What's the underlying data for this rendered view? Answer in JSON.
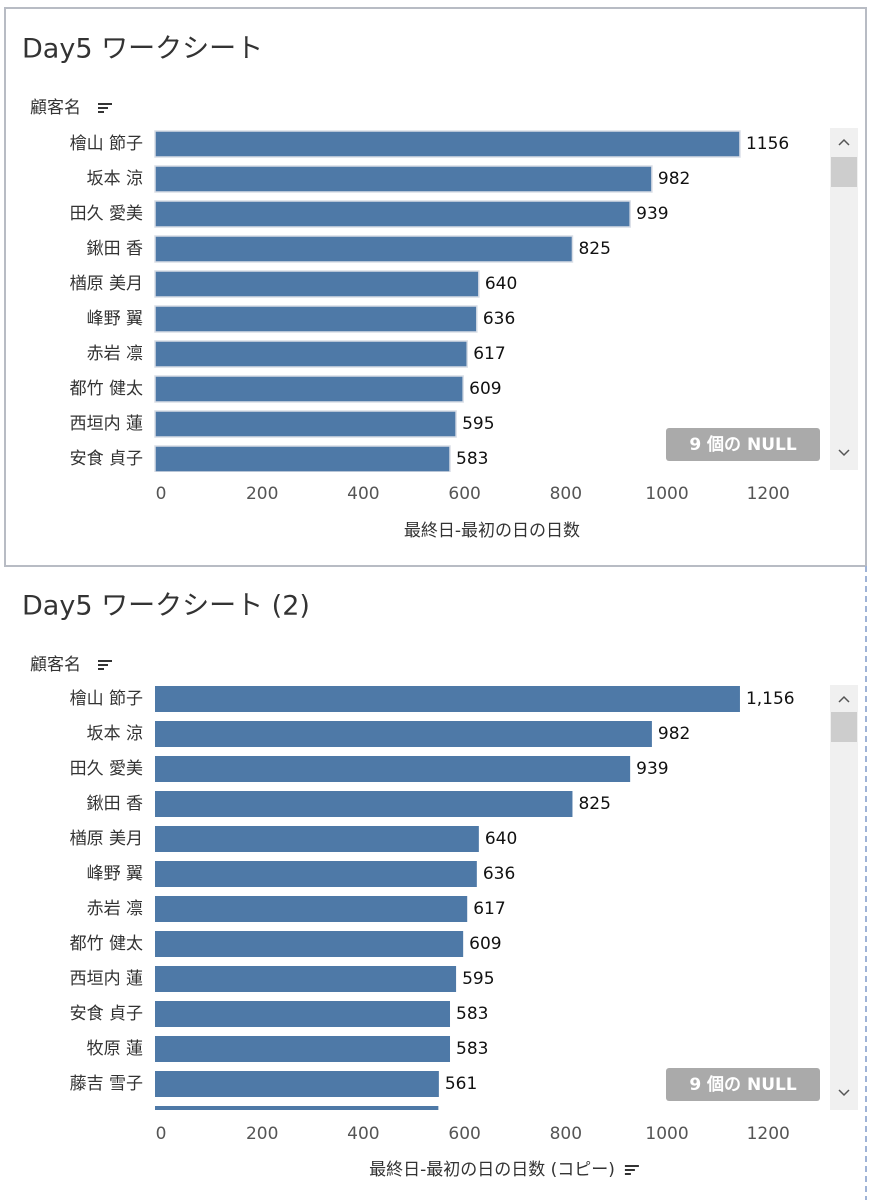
{
  "chart_data": [
    {
      "type": "bar",
      "orientation": "horizontal",
      "title": "Day5 ワークシート",
      "row_header": "顧客名",
      "categories": [
        "檜山 節子",
        "坂本 涼",
        "田久 愛美",
        "鍬田 香",
        "楢原 美月",
        "峰野 翼",
        "赤岩 凛",
        "都竹 健太",
        "西垣内 蓮",
        "安食 貞子"
      ],
      "values": [
        1156,
        982,
        939,
        825,
        640,
        636,
        617,
        609,
        595,
        583
      ],
      "color": "#4e79a7",
      "xlim": [
        0,
        1330
      ],
      "xticks": [
        0,
        200,
        400,
        600,
        800,
        1000,
        1200
      ],
      "xlabel": "最終日-最初の日の日数",
      "null_indicator": "9 個の NULL"
    },
    {
      "type": "bar",
      "orientation": "horizontal",
      "title": "Day5 ワークシート (2)",
      "row_header": "顧客名",
      "categories": [
        "檜山 節子",
        "坂本 涼",
        "田久 愛美",
        "鍬田 香",
        "楢原 美月",
        "峰野 翼",
        "赤岩 凛",
        "都竹 健太",
        "西垣内 蓮",
        "安食 貞子",
        "牧原 蓮",
        "藤吉 雪子",
        null
      ],
      "values": [
        1156,
        982,
        939,
        825,
        640,
        636,
        617,
        609,
        595,
        583,
        583,
        561,
        560
      ],
      "value_labels": [
        "1,156",
        "982",
        "939",
        "825",
        "640",
        "636",
        "617",
        "609",
        "595",
        "583",
        "583",
        "561",
        null
      ],
      "color": "#4e79a7",
      "xlim": [
        0,
        1330
      ],
      "xticks": [
        0,
        200,
        400,
        600,
        800,
        1000,
        1200
      ],
      "xlabel": "最終日-最初の日の日数 (コピー)",
      "null_indicator": "9 個の NULL"
    }
  ]
}
